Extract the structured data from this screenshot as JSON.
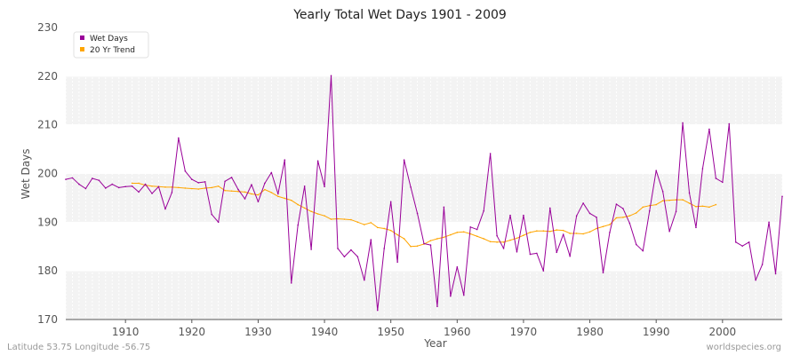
{
  "chart_data": {
    "type": "line",
    "title": "Yearly Total Wet Days 1901 - 2009",
    "xlabel": "Year",
    "ylabel": "Wet Days",
    "xlim": [
      1901,
      2009
    ],
    "ylim": [
      170,
      230
    ],
    "x_ticks": [
      1910,
      1920,
      1930,
      1940,
      1950,
      1960,
      1970,
      1980,
      1990,
      2000
    ],
    "y_ticks": [
      170,
      180,
      190,
      200,
      210,
      220,
      230
    ],
    "grid": true,
    "legend_position": "top-left",
    "series": [
      {
        "name": "Wet Days",
        "color": "#990099",
        "x": [
          1901,
          1902,
          1903,
          1904,
          1905,
          1906,
          1907,
          1908,
          1909,
          1910,
          1911,
          1912,
          1913,
          1914,
          1915,
          1916,
          1917,
          1918,
          1919,
          1920,
          1921,
          1922,
          1923,
          1924,
          1925,
          1926,
          1927,
          1928,
          1929,
          1930,
          1931,
          1932,
          1933,
          1934,
          1935,
          1936,
          1937,
          1938,
          1939,
          1940,
          1941,
          1942,
          1943,
          1944,
          1945,
          1946,
          1947,
          1948,
          1949,
          1950,
          1951,
          1952,
          1953,
          1954,
          1955,
          1956,
          1957,
          1958,
          1959,
          1960,
          1961,
          1962,
          1963,
          1964,
          1965,
          1966,
          1967,
          1968,
          1969,
          1970,
          1971,
          1972,
          1973,
          1974,
          1975,
          1976,
          1977,
          1978,
          1979,
          1980,
          1981,
          1982,
          1983,
          1984,
          1985,
          1986,
          1987,
          1988,
          1989,
          1990,
          1991,
          1992,
          1993,
          1994,
          1995,
          1996,
          1997,
          1998,
          1999,
          2000,
          2001,
          2002,
          2003,
          2004,
          2005,
          2006,
          2007,
          2008,
          2009
        ],
        "values": [
          198.8,
          199.1,
          197.8,
          196.9,
          199.0,
          198.6,
          197.0,
          197.8,
          197.1,
          197.3,
          197.4,
          196.2,
          197.8,
          195.9,
          197.3,
          192.7,
          196.1,
          207.3,
          200.5,
          198.8,
          198.1,
          198.3,
          191.6,
          190.0,
          198.4,
          199.2,
          196.7,
          194.8,
          197.7,
          194.2,
          198.0,
          200.2,
          195.8,
          202.8,
          177.5,
          189.4,
          197.4,
          184.4,
          202.6,
          197.3,
          220.1,
          184.6,
          182.9,
          184.3,
          182.9,
          178.1,
          186.4,
          171.9,
          184.6,
          194.2,
          181.8,
          202.8,
          197.2,
          191.8,
          185.6,
          185.3,
          172.7,
          193.1,
          174.8,
          180.8,
          175.0,
          189.0,
          188.5,
          192.3,
          204.1,
          187.2,
          184.6,
          191.4,
          183.9,
          191.4,
          183.4,
          183.6,
          180.0,
          192.9,
          183.8,
          187.5,
          183.0,
          191.3,
          193.9,
          191.8,
          191.0,
          179.6,
          187.9,
          193.7,
          192.8,
          189.8,
          185.4,
          184.1,
          192.3,
          200.6,
          196.3,
          188.1,
          192.2,
          210.4,
          196.0,
          188.9,
          201.0,
          209.1,
          199.0,
          198.2,
          210.2,
          185.9,
          185.1,
          185.9,
          178.1,
          181.3,
          190.0,
          179.4,
          195.3
        ]
      },
      {
        "name": "20 Yr Trend",
        "color": "#ffa500",
        "x": [
          1911,
          1912,
          1913,
          1914,
          1915,
          1916,
          1917,
          1918,
          1919,
          1920,
          1921,
          1922,
          1923,
          1924,
          1925,
          1926,
          1927,
          1928,
          1929,
          1930,
          1931,
          1932,
          1933,
          1934,
          1935,
          1936,
          1937,
          1938,
          1939,
          1940,
          1941,
          1942,
          1943,
          1944,
          1945,
          1946,
          1947,
          1948,
          1949,
          1950,
          1951,
          1952,
          1953,
          1954,
          1955,
          1956,
          1957,
          1958,
          1959,
          1960,
          1961,
          1962,
          1963,
          1964,
          1965,
          1966,
          1967,
          1968,
          1969,
          1970,
          1971,
          1972,
          1973,
          1974,
          1975,
          1976,
          1977,
          1978,
          1979,
          1980,
          1981,
          1982,
          1983,
          1984,
          1985,
          1986,
          1987,
          1988,
          1989,
          1990,
          1991,
          1992,
          1993,
          1994,
          1995,
          1996,
          1997,
          1998,
          1999
        ],
        "values": [
          198.0,
          198.0,
          197.6,
          197.4,
          197.3,
          197.2,
          197.2,
          197.1,
          197.0,
          196.9,
          196.8,
          197.0,
          197.1,
          197.4,
          196.5,
          196.4,
          196.3,
          196.2,
          195.8,
          195.6,
          196.7,
          196.1,
          195.3,
          194.9,
          194.5,
          193.6,
          192.9,
          192.2,
          191.7,
          191.3,
          190.6,
          190.7,
          190.6,
          190.5,
          190.0,
          189.5,
          189.9,
          188.9,
          188.7,
          188.3,
          187.4,
          186.6,
          185.0,
          185.1,
          185.5,
          186.2,
          186.6,
          186.9,
          187.4,
          187.9,
          188.0,
          187.6,
          187.1,
          186.6,
          186.0,
          185.9,
          185.9,
          186.3,
          186.7,
          187.3,
          187.9,
          188.2,
          188.2,
          188.1,
          188.4,
          188.3,
          187.7,
          187.7,
          187.6,
          188.0,
          188.7,
          189.1,
          189.5,
          190.9,
          191.0,
          191.3,
          191.9,
          193.1,
          193.4,
          193.6,
          194.4,
          194.5,
          194.6,
          194.6,
          193.9,
          193.2,
          193.3,
          193.1,
          193.6
        ]
      }
    ]
  },
  "footer": {
    "location": "Latitude 53.75 Longitude -56.75",
    "source": "worldspecies.org"
  },
  "colors": {
    "band_light": "#f3f3f3",
    "band_white": "#ffffff",
    "axis": "#555555"
  }
}
